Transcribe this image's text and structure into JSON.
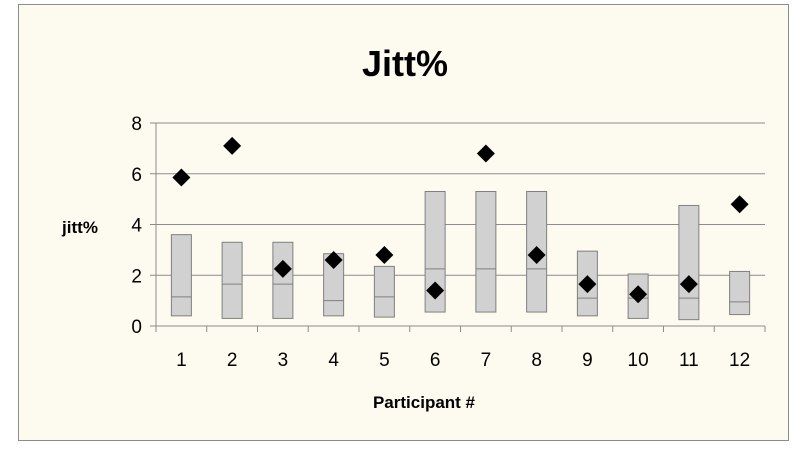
{
  "chart_data": {
    "type": "boxplot-with-markers",
    "title": "Jitt%",
    "xlabel": "Participant #",
    "ylabel": "jitt%",
    "ylim": [
      0,
      8
    ],
    "yticks": [
      0,
      2,
      4,
      6,
      8
    ],
    "grid": true,
    "categories": [
      "1",
      "2",
      "3",
      "4",
      "5",
      "6",
      "7",
      "8",
      "9",
      "10",
      "11",
      "12"
    ],
    "ranges": {
      "low": [
        0.4,
        0.3,
        0.3,
        0.4,
        0.35,
        0.55,
        0.55,
        0.55,
        0.4,
        0.3,
        0.25,
        0.45
      ],
      "median": [
        1.15,
        1.65,
        1.65,
        1.0,
        1.15,
        2.25,
        2.25,
        2.25,
        1.1,
        1.1,
        1.1,
        0.95
      ],
      "high": [
        3.6,
        3.3,
        3.3,
        2.85,
        2.35,
        5.3,
        5.3,
        5.3,
        2.95,
        2.05,
        4.75,
        2.15
      ]
    },
    "markers": [
      5.85,
      7.1,
      2.25,
      2.6,
      2.8,
      1.4,
      6.8,
      2.8,
      1.65,
      1.25,
      1.65,
      4.8
    ],
    "colors": {
      "box_fill": "#d1d1d1",
      "box_stroke": "#7f7f7f",
      "marker": "#000000",
      "grid": "#8c8c8c",
      "background": "#fdfbf0"
    }
  }
}
